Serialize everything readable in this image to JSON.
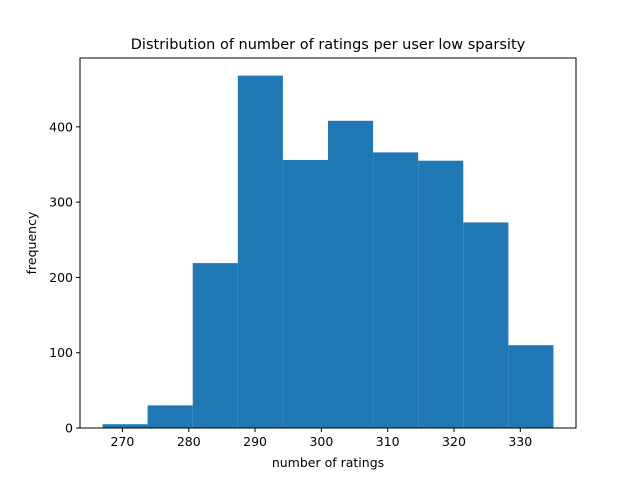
{
  "chart_data": {
    "type": "histogram",
    "title": "Distribution of number of ratings per user low sparsity",
    "xlabel": "number of ratings",
    "ylabel": "frequency",
    "bin_edges": [
      267.0,
      273.8,
      280.6,
      287.4,
      294.2,
      301.0,
      307.8,
      314.6,
      321.4,
      328.2,
      335.0
    ],
    "values": [
      5,
      30,
      219,
      468,
      356,
      408,
      366,
      355,
      273,
      110
    ],
    "xlim": [
      263.6,
      338.4
    ],
    "ylim": [
      0,
      491.4
    ],
    "xticks": [
      270,
      280,
      290,
      300,
      310,
      320,
      330
    ],
    "yticks": [
      0,
      100,
      200,
      300,
      400
    ],
    "bar_color": "#1f77b4",
    "grid": false
  }
}
